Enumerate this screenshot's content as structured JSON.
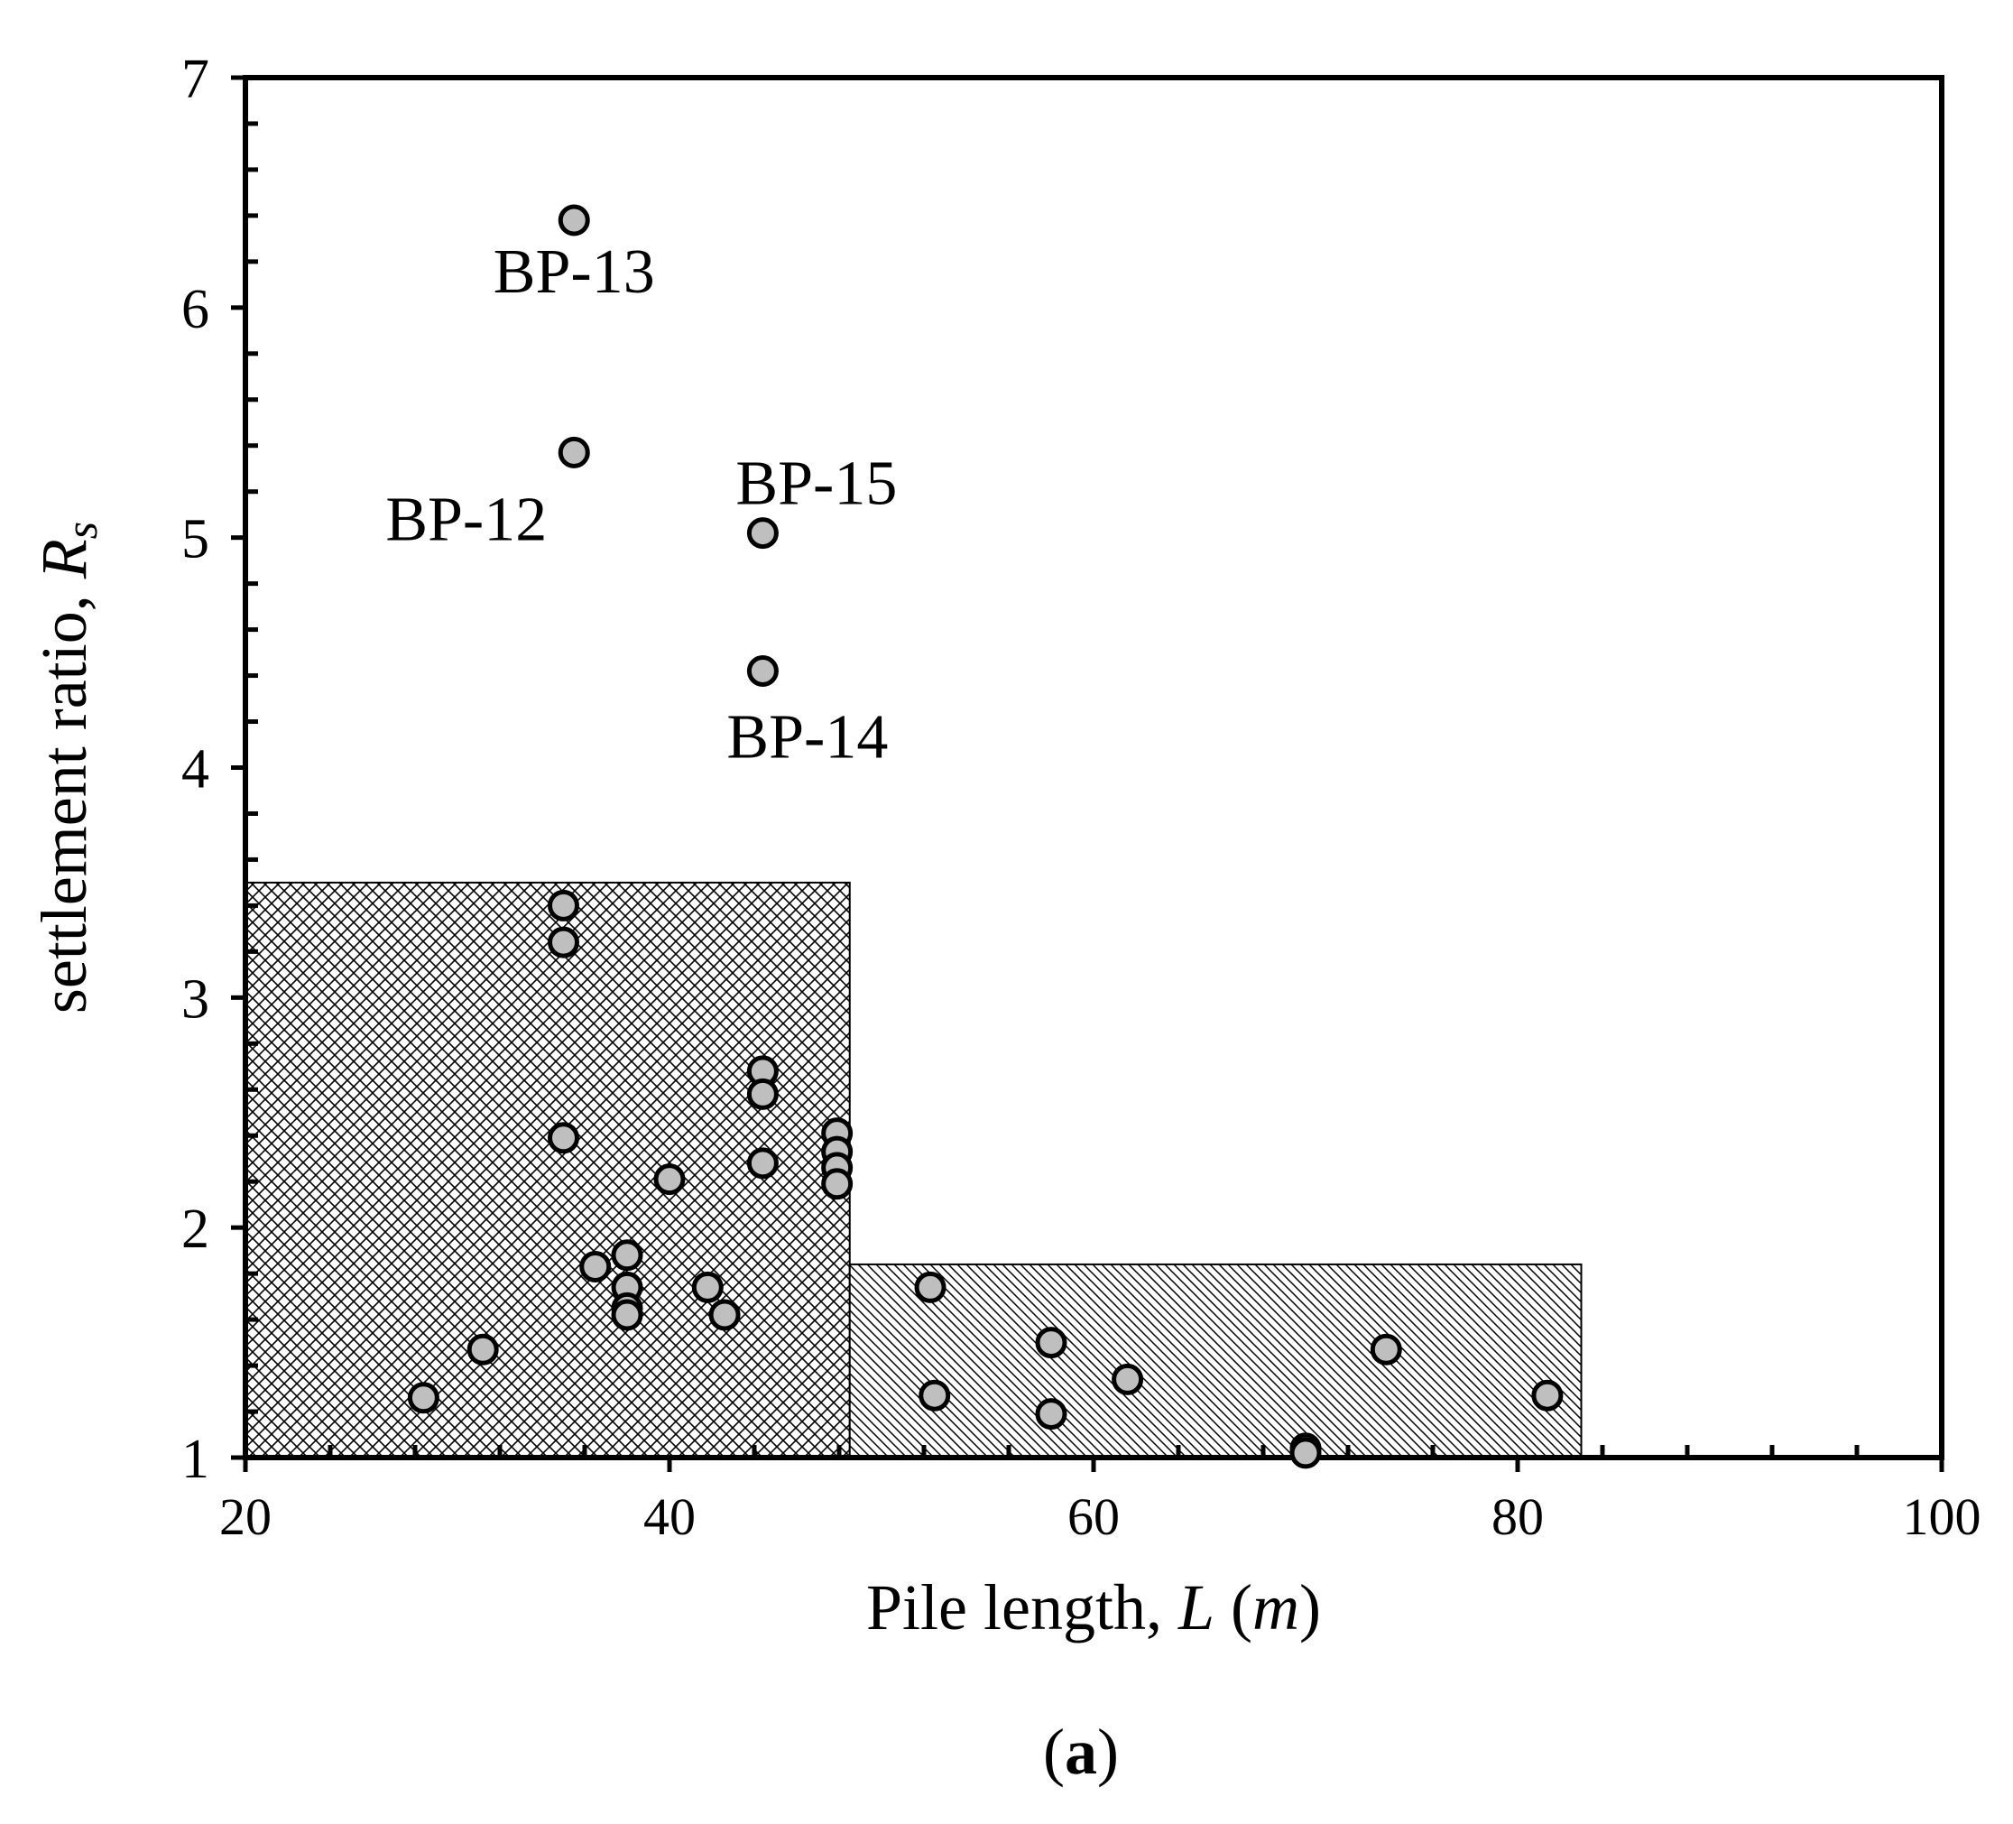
{
  "chart_data": {
    "type": "scatter",
    "xlabel": {
      "pre": "Pile length, ",
      "var": "L",
      "mid": " (",
      "unit": "m",
      "post": ")"
    },
    "ylabel": {
      "pre": "settlement ratio, ",
      "var": "R",
      "sub": "s"
    },
    "xlim": [
      20,
      100
    ],
    "ylim": [
      1,
      7
    ],
    "xticks": [
      20,
      40,
      60,
      80,
      100
    ],
    "yticks": [
      1,
      2,
      3,
      4,
      5,
      6,
      7
    ],
    "x_tick_labels": [
      "20",
      "40",
      "60",
      "80",
      "100"
    ],
    "y_tick_labels": [
      "1",
      "2",
      "3",
      "4",
      "5",
      "6",
      "7"
    ],
    "grid": false,
    "panel_label": {
      "open": "(",
      "letter": "a",
      "close": ")"
    },
    "regions": [
      {
        "name": "crosshatch",
        "x": [
          20,
          48.5
        ],
        "y": [
          1,
          3.5
        ],
        "pattern": "crosshatch"
      },
      {
        "name": "diagonal",
        "x": [
          48.5,
          83
        ],
        "y": [
          1,
          1.84
        ],
        "pattern": "diagonal"
      }
    ],
    "points": [
      {
        "x": 28.4,
        "y": 1.26
      },
      {
        "x": 31.2,
        "y": 1.47
      },
      {
        "x": 35.0,
        "y": 3.4
      },
      {
        "x": 35.0,
        "y": 3.24
      },
      {
        "x": 35.0,
        "y": 2.39
      },
      {
        "x": 35.5,
        "y": 6.38,
        "label": "BP-13"
      },
      {
        "x": 35.5,
        "y": 5.37,
        "label": "BP-12"
      },
      {
        "x": 36.5,
        "y": 1.83
      },
      {
        "x": 38.0,
        "y": 1.88
      },
      {
        "x": 38.0,
        "y": 1.74
      },
      {
        "x": 38.0,
        "y": 1.65
      },
      {
        "x": 38.0,
        "y": 1.62
      },
      {
        "x": 40.0,
        "y": 2.21
      },
      {
        "x": 41.8,
        "y": 1.74
      },
      {
        "x": 42.6,
        "y": 1.62
      },
      {
        "x": 44.4,
        "y": 5.02,
        "label": "BP-15"
      },
      {
        "x": 44.4,
        "y": 4.42,
        "label": "BP-14"
      },
      {
        "x": 44.4,
        "y": 2.68
      },
      {
        "x": 44.4,
        "y": 2.58
      },
      {
        "x": 44.4,
        "y": 2.28
      },
      {
        "x": 47.9,
        "y": 2.41
      },
      {
        "x": 47.9,
        "y": 2.33
      },
      {
        "x": 47.9,
        "y": 2.26
      },
      {
        "x": 47.9,
        "y": 2.19
      },
      {
        "x": 52.3,
        "y": 1.74
      },
      {
        "x": 52.5,
        "y": 1.27
      },
      {
        "x": 58.0,
        "y": 1.5
      },
      {
        "x": 58.0,
        "y": 1.19
      },
      {
        "x": 61.6,
        "y": 1.34
      },
      {
        "x": 70.0,
        "y": 1.04
      },
      {
        "x": 70.0,
        "y": 1.02
      },
      {
        "x": 73.8,
        "y": 1.47
      },
      {
        "x": 81.4,
        "y": 1.27
      }
    ],
    "annotation_placement": {
      "BP-13": "below",
      "BP-12": "below-left",
      "BP-15": "above-right",
      "BP-14": "below-right"
    },
    "colors": {
      "marker_fill": "#bfbfbf",
      "marker_edge": "#000000",
      "axis": "#000000"
    }
  }
}
